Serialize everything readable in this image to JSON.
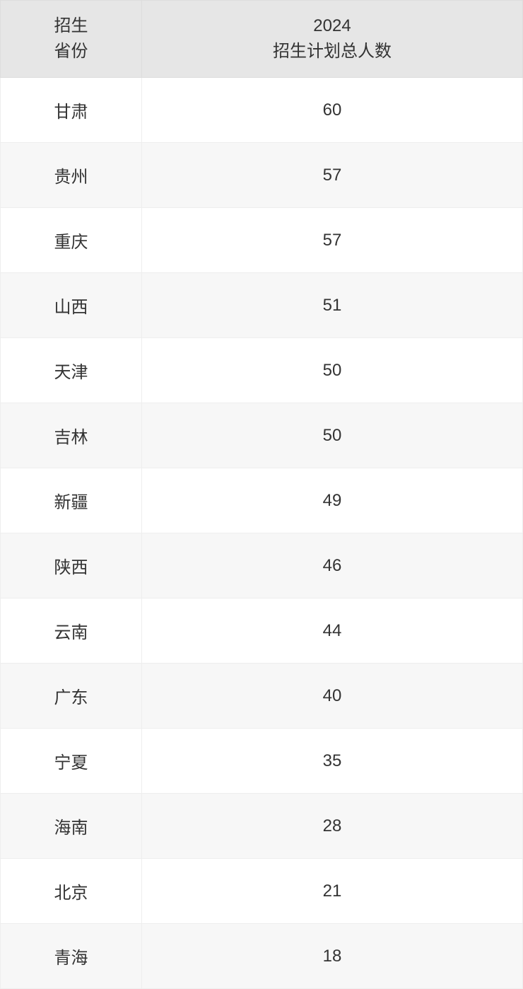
{
  "table": {
    "columns": [
      {
        "line1": "招生",
        "line2": "省份"
      },
      {
        "line1": "2024",
        "line2": "招生计划总人数"
      }
    ],
    "rows": [
      {
        "province": "甘肃",
        "count": "60"
      },
      {
        "province": "贵州",
        "count": "57"
      },
      {
        "province": "重庆",
        "count": "57"
      },
      {
        "province": "山西",
        "count": "51"
      },
      {
        "province": "天津",
        "count": "50"
      },
      {
        "province": "吉林",
        "count": "50"
      },
      {
        "province": "新疆",
        "count": "49"
      },
      {
        "province": "陕西",
        "count": "46"
      },
      {
        "province": "云南",
        "count": "44"
      },
      {
        "province": "广东",
        "count": "40"
      },
      {
        "province": "宁夏",
        "count": "35"
      },
      {
        "province": "海南",
        "count": "28"
      },
      {
        "province": "北京",
        "count": "21"
      },
      {
        "province": "青海",
        "count": "18"
      }
    ]
  }
}
